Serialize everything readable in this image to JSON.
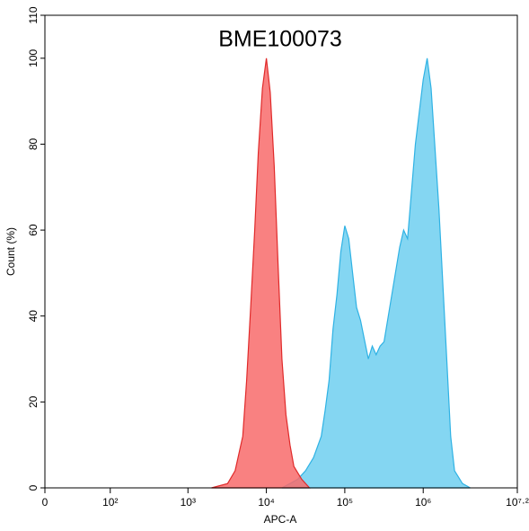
{
  "chart_data": {
    "type": "area",
    "title": "BME100073",
    "x_label": "APC-A",
    "y_label": "Count (%)",
    "xscale": "logicle",
    "xlim": [
      0,
      15848932
    ],
    "xticks": [
      0,
      {
        "value": 100,
        "label": "10²"
      },
      {
        "value": 1000,
        "label": "10³"
      },
      {
        "value": 10000,
        "label": "10⁴"
      },
      {
        "value": 100000,
        "label": "10⁵"
      },
      {
        "value": 1000000,
        "label": "10⁶"
      },
      {
        "value": 15848932,
        "label": "10⁷·²"
      }
    ],
    "ylim": [
      0,
      110
    ],
    "yticks": [
      0,
      20,
      40,
      60,
      80,
      100,
      110
    ],
    "series": [
      {
        "color": "#6fcff0",
        "edge": "#2fb2e4",
        "x": [
          15800,
          20000,
          25100,
          31600,
          39800,
          50100,
          56200,
          63100,
          70800,
          79400,
          89100,
          100000,
          112200,
          125900,
          141300,
          158500,
          199500,
          223900,
          251200,
          281800,
          316200,
          398100,
          501200,
          562300,
          631000,
          794300,
          1000000,
          1122000,
          1259000,
          1585000,
          1995000,
          2239000,
          2512000,
          3162000,
          3981000
        ],
        "values": [
          0,
          1,
          2,
          4,
          7,
          12,
          18,
          25,
          37,
          45,
          55,
          61,
          58,
          50,
          42,
          39,
          30,
          33,
          31,
          33,
          34,
          45,
          56,
          60,
          58,
          80,
          95,
          100,
          93,
          65,
          30,
          12,
          4,
          1,
          0
        ]
      },
      {
        "color": "#f86b6b",
        "edge": "#e02a2a",
        "x": [
          2000,
          3200,
          4000,
          5000,
          5600,
          6300,
          7100,
          7900,
          8900,
          10000,
          11200,
          12600,
          14100,
          15800,
          17800,
          20000,
          22400,
          28200,
          35500
        ],
        "values": [
          0,
          1,
          4,
          12,
          25,
          42,
          60,
          78,
          93,
          100,
          92,
          75,
          52,
          30,
          17,
          10,
          5,
          2,
          0
        ]
      }
    ]
  }
}
